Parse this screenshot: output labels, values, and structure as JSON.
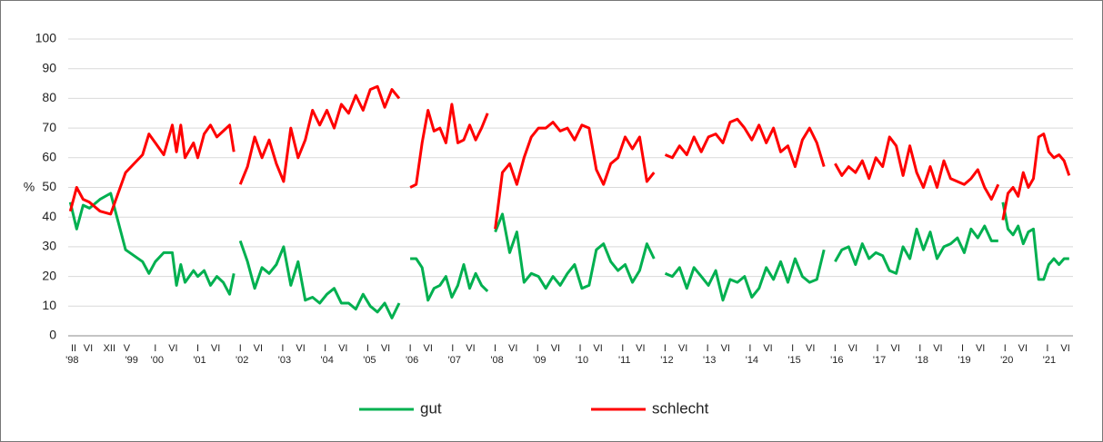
{
  "chart_data": {
    "type": "line",
    "ylabel": "%",
    "x": [
      1998.0,
      1998.15,
      1998.3,
      1998.45,
      1998.7,
      1998.95,
      1999.3,
      1999.7,
      1999.85,
      2000.0,
      2000.2,
      2000.4,
      2000.5,
      2000.6,
      2000.7,
      2000.9,
      2001.0,
      2001.15,
      2001.3,
      2001.45,
      2001.6,
      2001.75,
      2001.85,
      null,
      2002.0,
      2002.17,
      2002.34,
      2002.51,
      2002.68,
      2002.85,
      2003.02,
      2003.19,
      2003.36,
      2003.53,
      2003.7,
      2003.87,
      2004.04,
      2004.21,
      2004.38,
      2004.55,
      2004.72,
      2004.89,
      2005.06,
      2005.23,
      2005.4,
      2005.57,
      2005.74,
      null,
      2006.0,
      2006.14,
      2006.28,
      2006.42,
      2006.56,
      2006.7,
      2006.84,
      2006.98,
      2007.12,
      2007.26,
      2007.4,
      2007.54,
      2007.68,
      2007.82,
      null,
      2008.0,
      2008.17,
      2008.34,
      2008.51,
      2008.68,
      2008.85,
      2009.02,
      2009.19,
      2009.36,
      2009.53,
      2009.7,
      2009.87,
      2010.04,
      2010.21,
      2010.38,
      2010.55,
      2010.72,
      2010.89,
      2011.06,
      2011.23,
      2011.4,
      2011.57,
      2011.74,
      null,
      2012.0,
      2012.17,
      2012.34,
      2012.51,
      2012.68,
      2012.85,
      2013.02,
      2013.19,
      2013.36,
      2013.53,
      2013.7,
      2013.87,
      2014.04,
      2014.21,
      2014.38,
      2014.55,
      2014.72,
      2014.89,
      2015.06,
      2015.23,
      2015.4,
      2015.57,
      2015.74,
      null,
      2016.0,
      2016.16,
      2016.32,
      2016.48,
      2016.64,
      2016.8,
      2016.96,
      2017.12,
      2017.28,
      2017.44,
      2017.6,
      2017.76,
      2017.92,
      2018.08,
      2018.24,
      2018.4,
      2018.56,
      2018.72,
      2018.88,
      2019.04,
      2019.2,
      2019.36,
      2019.52,
      2019.68,
      2019.84,
      null,
      2019.95,
      2020.07,
      2020.19,
      2020.31,
      2020.43,
      2020.55,
      2020.67,
      2020.79,
      2020.91,
      2021.03,
      2021.15,
      2021.27,
      2021.39,
      2021.51
    ],
    "series": [
      {
        "name": "gut",
        "color": "#00b050",
        "values": [
          45,
          36,
          44,
          43,
          46,
          48,
          29,
          25,
          21,
          25,
          28,
          28,
          17,
          24,
          18,
          22,
          20,
          22,
          17,
          20,
          18,
          14,
          21,
          null,
          32,
          25,
          16,
          23,
          21,
          24,
          30,
          17,
          25,
          12,
          13,
          11,
          14,
          16,
          11,
          11,
          9,
          14,
          10,
          8,
          11,
          6,
          11,
          null,
          26,
          26,
          23,
          12,
          16,
          17,
          20,
          13,
          17,
          24,
          16,
          21,
          17,
          15,
          null,
          35,
          41,
          28,
          35,
          18,
          21,
          20,
          16,
          20,
          17,
          21,
          24,
          16,
          17,
          29,
          31,
          25,
          22,
          24,
          18,
          22,
          31,
          26,
          null,
          21,
          20,
          23,
          16,
          23,
          20,
          17,
          22,
          12,
          19,
          18,
          20,
          13,
          16,
          23,
          19,
          25,
          18,
          26,
          20,
          18,
          19,
          29,
          null,
          25,
          29,
          30,
          24,
          31,
          26,
          28,
          27,
          22,
          21,
          30,
          26,
          36,
          29,
          35,
          26,
          30,
          31,
          33,
          28,
          36,
          33,
          37,
          32,
          32,
          null,
          45,
          36,
          34,
          37,
          31,
          35,
          36,
          19,
          19,
          24,
          26,
          24,
          26,
          26
        ]
      },
      {
        "name": "schlecht",
        "color": "#ff0000",
        "values": [
          42,
          50,
          46,
          45,
          42,
          41,
          55,
          61,
          68,
          65,
          61,
          71,
          62,
          71,
          60,
          65,
          60,
          68,
          71,
          67,
          69,
          71,
          62,
          null,
          51,
          57,
          67,
          60,
          66,
          58,
          52,
          70,
          60,
          66,
          76,
          71,
          76,
          70,
          78,
          75,
          81,
          76,
          83,
          84,
          77,
          83,
          80,
          null,
          50,
          51,
          65,
          76,
          69,
          70,
          65,
          78,
          65,
          66,
          71,
          66,
          70,
          75,
          null,
          36,
          55,
          58,
          51,
          60,
          67,
          70,
          70,
          72,
          69,
          70,
          66,
          71,
          70,
          56,
          51,
          58,
          60,
          67,
          63,
          67,
          52,
          55,
          null,
          61,
          60,
          64,
          61,
          67,
          62,
          67,
          68,
          65,
          72,
          73,
          70,
          66,
          71,
          65,
          70,
          62,
          64,
          57,
          66,
          70,
          65,
          57,
          null,
          58,
          54,
          57,
          55,
          59,
          53,
          60,
          57,
          67,
          64,
          54,
          64,
          55,
          50,
          57,
          50,
          59,
          53,
          52,
          51,
          53,
          56,
          50,
          46,
          51,
          null,
          39,
          48,
          50,
          47,
          55,
          50,
          53,
          67,
          68,
          62,
          60,
          61,
          59,
          54
        ]
      }
    ],
    "xlim": [
      1997.95,
      2021.6
    ],
    "ylim": [
      0,
      100
    ],
    "yticks": [
      0,
      10,
      20,
      30,
      40,
      50,
      60,
      70,
      80,
      90,
      100
    ],
    "grid": true,
    "xticks": [
      {
        "value": 1998.08,
        "label": "II"
      },
      {
        "value": 1998.42,
        "label": "VI"
      },
      {
        "value": 1998.92,
        "label": "XII"
      },
      {
        "value": 1999.33,
        "label": "V"
      },
      {
        "value": 2000.0,
        "label": "I"
      },
      {
        "value": 2000.42,
        "label": "VI"
      },
      {
        "value": 2001.0,
        "label": "I"
      },
      {
        "value": 2001.42,
        "label": "VI"
      },
      {
        "value": 2002.0,
        "label": "I"
      },
      {
        "value": 2002.42,
        "label": "VI"
      },
      {
        "value": 2003.0,
        "label": "I"
      },
      {
        "value": 2003.42,
        "label": "VI"
      },
      {
        "value": 2004.0,
        "label": "I"
      },
      {
        "value": 2004.42,
        "label": "VI"
      },
      {
        "value": 2005.0,
        "label": "I"
      },
      {
        "value": 2005.42,
        "label": "VI"
      },
      {
        "value": 2006.0,
        "label": "I"
      },
      {
        "value": 2006.42,
        "label": "VI"
      },
      {
        "value": 2007.0,
        "label": "I"
      },
      {
        "value": 2007.42,
        "label": "VI"
      },
      {
        "value": 2008.0,
        "label": "I"
      },
      {
        "value": 2008.42,
        "label": "VI"
      },
      {
        "value": 2009.0,
        "label": "I"
      },
      {
        "value": 2009.42,
        "label": "VI"
      },
      {
        "value": 2010.0,
        "label": "I"
      },
      {
        "value": 2010.42,
        "label": "VI"
      },
      {
        "value": 2011.0,
        "label": "I"
      },
      {
        "value": 2011.42,
        "label": "VI"
      },
      {
        "value": 2012.0,
        "label": "I"
      },
      {
        "value": 2012.42,
        "label": "VI"
      },
      {
        "value": 2013.0,
        "label": "I"
      },
      {
        "value": 2013.42,
        "label": "VI"
      },
      {
        "value": 2014.0,
        "label": "I"
      },
      {
        "value": 2014.42,
        "label": "VI"
      },
      {
        "value": 2015.0,
        "label": "I"
      },
      {
        "value": 2015.42,
        "label": "VI"
      },
      {
        "value": 2016.0,
        "label": "I"
      },
      {
        "value": 2016.42,
        "label": "VI"
      },
      {
        "value": 2017.0,
        "label": "I"
      },
      {
        "value": 2017.42,
        "label": "VI"
      },
      {
        "value": 2018.0,
        "label": "I"
      },
      {
        "value": 2018.42,
        "label": "VI"
      },
      {
        "value": 2019.0,
        "label": "I"
      },
      {
        "value": 2019.42,
        "label": "VI"
      },
      {
        "value": 2020.0,
        "label": "I"
      },
      {
        "value": 2020.42,
        "label": "VI"
      },
      {
        "value": 2021.0,
        "label": "I"
      },
      {
        "value": 2021.42,
        "label": "VI"
      }
    ],
    "year_labels": [
      {
        "value": 1998.0,
        "label": "'98"
      },
      {
        "value": 1999.4,
        "label": "'99"
      },
      {
        "value": 2000.0,
        "label": "'00"
      },
      {
        "value": 2001.0,
        "label": "'01"
      },
      {
        "value": 2002.0,
        "label": "'02"
      },
      {
        "value": 2003.0,
        "label": "'03"
      },
      {
        "value": 2004.0,
        "label": "'04"
      },
      {
        "value": 2005.0,
        "label": "'05"
      },
      {
        "value": 2006.0,
        "label": "'06"
      },
      {
        "value": 2007.0,
        "label": "'07"
      },
      {
        "value": 2008.0,
        "label": "'08"
      },
      {
        "value": 2009.0,
        "label": "'09"
      },
      {
        "value": 2010.0,
        "label": "'10"
      },
      {
        "value": 2011.0,
        "label": "'11"
      },
      {
        "value": 2012.0,
        "label": "'12"
      },
      {
        "value": 2013.0,
        "label": "'13"
      },
      {
        "value": 2014.0,
        "label": "'14"
      },
      {
        "value": 2015.0,
        "label": "'15"
      },
      {
        "value": 2016.0,
        "label": "'16"
      },
      {
        "value": 2017.0,
        "label": "'17"
      },
      {
        "value": 2018.0,
        "label": "'18"
      },
      {
        "value": 2019.0,
        "label": "'19"
      },
      {
        "value": 2020.0,
        "label": "'20"
      },
      {
        "value": 2021.0,
        "label": "'21"
      }
    ],
    "legend": "bottom"
  }
}
